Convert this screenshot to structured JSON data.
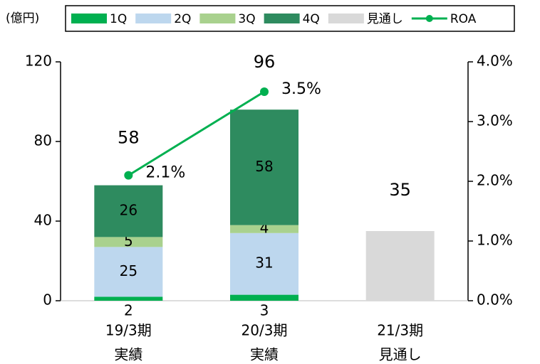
{
  "chart_data": {
    "type": "bar",
    "unit_label": "(億円)",
    "categories": [
      "19/3期",
      "20/3期",
      "21/3期"
    ],
    "category_sublabels": [
      "実績",
      "実績",
      "見通し"
    ],
    "series": [
      {
        "name": "1Q",
        "color": "#00b050",
        "values": [
          2,
          3,
          null
        ]
      },
      {
        "name": "2Q",
        "color": "#bdd7ee",
        "values": [
          25,
          31,
          null
        ]
      },
      {
        "name": "3Q",
        "color": "#a9d18e",
        "values": [
          5,
          4,
          null
        ]
      },
      {
        "name": "4Q",
        "color": "#2e8b5f",
        "values": [
          26,
          58,
          null
        ]
      },
      {
        "name": "見通し",
        "color": "#d9d9d9",
        "values": [
          null,
          null,
          35
        ]
      },
      {
        "name": "ROA",
        "color": "#00b050",
        "type": "line",
        "axis": "y2",
        "values": [
          2.1,
          3.5,
          null
        ],
        "value_labels": [
          "2.1%",
          "3.5%",
          null
        ]
      }
    ],
    "totals": [
      58,
      96,
      null
    ],
    "ylim": [
      0,
      120
    ],
    "yticks": [
      0,
      40,
      80,
      120
    ],
    "y2lim": [
      0,
      4
    ],
    "y2ticks": [
      {
        "value": 0,
        "label": "0.0%"
      },
      {
        "value": 1,
        "label": "1.0%"
      },
      {
        "value": 2,
        "label": "2.0%"
      },
      {
        "value": 3,
        "label": "3.0%"
      },
      {
        "value": 4,
        "label": "4.0%"
      }
    ],
    "legend": "top"
  }
}
